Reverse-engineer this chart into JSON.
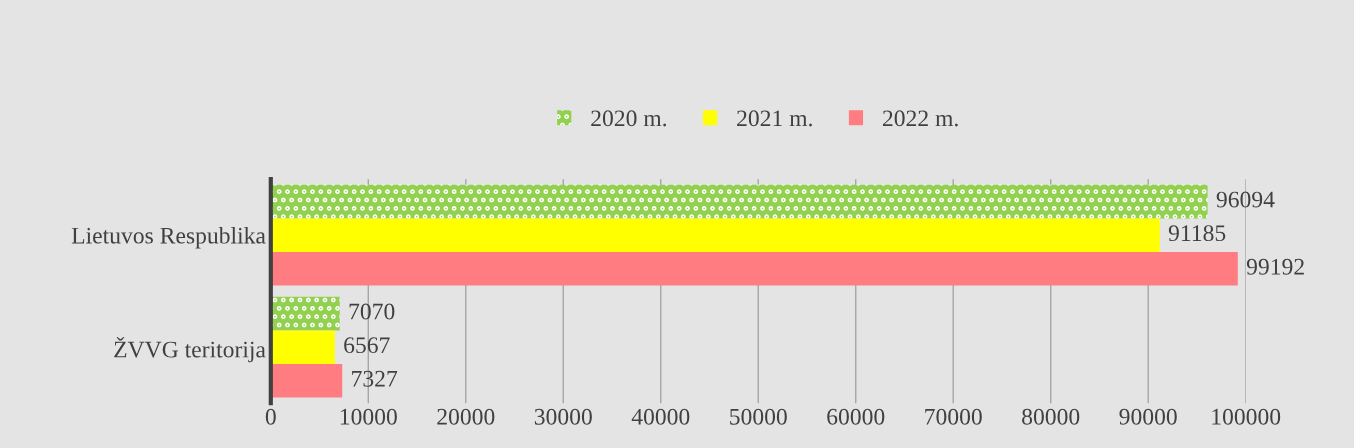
{
  "chart_data": {
    "type": "bar",
    "orientation": "horizontal",
    "categories": [
      "Lietuvos Respublika",
      "ŽVVG teritorija"
    ],
    "series": [
      {
        "name": "2020 m.",
        "color": "#92d050",
        "values": [
          96094,
          7070
        ]
      },
      {
        "name": "2021 m.",
        "color": "#ffff00",
        "values": [
          91185,
          6567
        ]
      },
      {
        "name": "2022 m.",
        "color": "#ff7c80",
        "values": [
          99192,
          7327
        ]
      }
    ],
    "xlim": [
      0,
      100000
    ],
    "xticks": [
      0,
      10000,
      20000,
      30000,
      40000,
      50000,
      60000,
      70000,
      80000,
      90000,
      100000
    ],
    "grid": "x",
    "legend": "top",
    "data_labels": true
  }
}
